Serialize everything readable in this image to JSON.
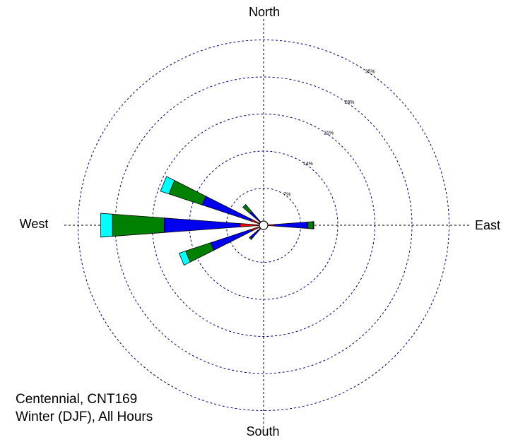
{
  "chart_data": {
    "type": "wind-rose",
    "directions": {
      "north": "North",
      "east": "East",
      "south": "South",
      "west": "West"
    },
    "rings": [
      {
        "value": 7,
        "label": "7%"
      },
      {
        "value": 14,
        "label": "14%"
      },
      {
        "value": 21,
        "label": "21%"
      },
      {
        "value": 28,
        "label": "28%"
      },
      {
        "value": 35,
        "label": "35%"
      }
    ],
    "rmax": 36,
    "speed_bins": [
      {
        "color": "#ff0000"
      },
      {
        "color": "#0000ee"
      },
      {
        "color": "#008000"
      },
      {
        "color": "#00ffff"
      }
    ],
    "petals": [
      {
        "direction": 22.5,
        "cumulative": [
          0.4,
          0.5,
          0.5,
          0.5
        ]
      },
      {
        "direction": 45,
        "cumulative": [
          0.5,
          0.6,
          0.6,
          0.6
        ]
      },
      {
        "direction": 90,
        "cumulative": [
          2.0,
          8.4,
          9.4,
          9.5
        ]
      },
      {
        "direction": 135,
        "cumulative": [
          0.3,
          0.4,
          0.4,
          0.4
        ]
      },
      {
        "direction": 157.5,
        "cumulative": [
          0.3,
          0.4,
          0.4,
          0.4
        ]
      },
      {
        "direction": 225,
        "cumulative": [
          0.3,
          3.3,
          3.6,
          3.6
        ]
      },
      {
        "direction": 247.5,
        "cumulative": [
          2.5,
          10.5,
          15.5,
          16.8
        ]
      },
      {
        "direction": 270,
        "cumulative": [
          4.4,
          18.8,
          28.6,
          30.8
        ]
      },
      {
        "direction": 292.5,
        "cumulative": [
          2.5,
          12.2,
          18.8,
          20.5
        ]
      },
      {
        "direction": 315,
        "cumulative": [
          0.6,
          3.4,
          5.0,
          5.2
        ]
      },
      {
        "direction": 337.5,
        "cumulative": [
          0.3,
          0.5,
          0.5,
          0.5
        ]
      }
    ],
    "title": "",
    "grid": true
  },
  "caption": {
    "line1": "Centennial, CNT169",
    "line2": "Winter (DJF), All Hours"
  }
}
